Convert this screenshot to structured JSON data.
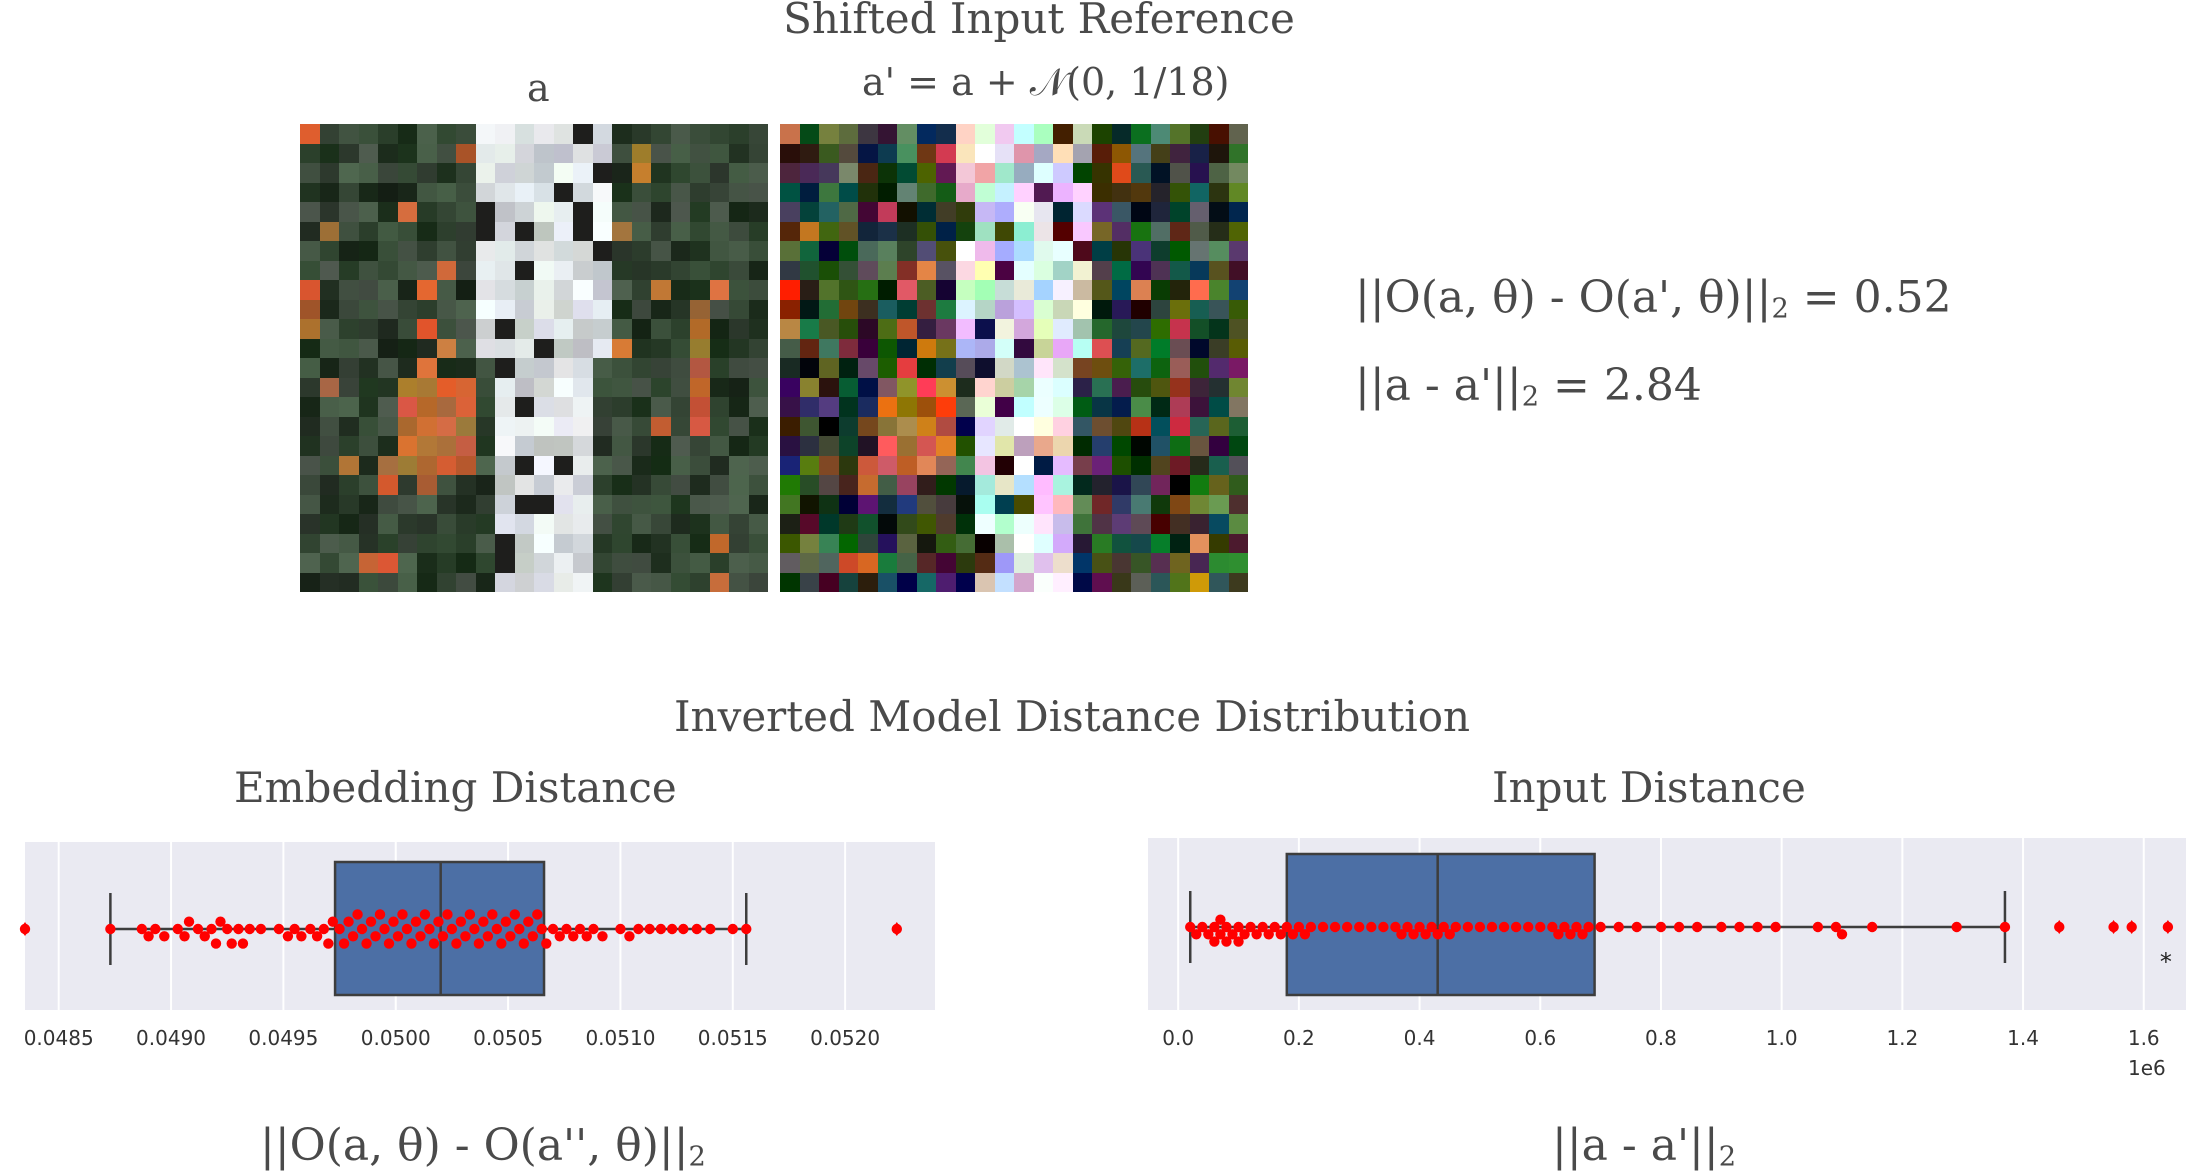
{
  "figure": {
    "top_title": "Shifted Input Reference",
    "image_a_label": "a",
    "image_ap_label": "a' = a + 𝒩(0, 1/18)",
    "metric_embedding_prefix": "||O(a, θ) - O(a', θ)||",
    "metric_embedding_sub": "2",
    "metric_embedding_value": " = 0.52",
    "metric_input_prefix": "||a - a'||",
    "metric_input_sub": "2",
    "metric_input_value": " = 2.84",
    "bottom_title": "Inverted Model Distance Distribution"
  },
  "chart_data": [
    {
      "type": "box",
      "title": "Embedding Distance",
      "xlabel_prefix": "||O(a, θ) - O(a'', θ)||",
      "xlabel_sub": "2",
      "xlim": [
        0.04835,
        0.0524
      ],
      "xticks": [
        "0.0485",
        "0.0490",
        "0.0495",
        "0.0500",
        "0.0505",
        "0.0510",
        "0.0515",
        "0.0520"
      ],
      "tick_values": [
        0.0485,
        0.049,
        0.0495,
        0.05,
        0.0505,
        0.051,
        0.0515,
        0.052
      ],
      "box": {
        "whisker_low": 0.04873,
        "q1": 0.04973,
        "median": 0.0502,
        "q3": 0.05066,
        "whisker_high": 0.05156
      },
      "outliers": [
        0.04835,
        0.05223
      ],
      "points": [
        0.04873,
        0.04887,
        0.0489,
        0.04893,
        0.04897,
        0.04903,
        0.04906,
        0.04908,
        0.04912,
        0.04915,
        0.04918,
        0.0492,
        0.04922,
        0.04925,
        0.04927,
        0.0493,
        0.04932,
        0.04935,
        0.0494,
        0.04948,
        0.04952,
        0.04955,
        0.04958,
        0.04962,
        0.04965,
        0.04968,
        0.0497,
        0.04972,
        0.04975,
        0.04977,
        0.04979,
        0.04981,
        0.04983,
        0.04985,
        0.04987,
        0.04989,
        0.04991,
        0.04993,
        0.04995,
        0.04997,
        0.04999,
        0.05001,
        0.05003,
        0.05005,
        0.05007,
        0.05009,
        0.05011,
        0.05013,
        0.05015,
        0.05017,
        0.05019,
        0.05021,
        0.05023,
        0.05025,
        0.05027,
        0.05029,
        0.05031,
        0.05033,
        0.05035,
        0.05037,
        0.05039,
        0.05041,
        0.05043,
        0.05045,
        0.05047,
        0.05049,
        0.05051,
        0.05053,
        0.05055,
        0.05057,
        0.05059,
        0.05061,
        0.05063,
        0.05065,
        0.05067,
        0.0507,
        0.05073,
        0.05076,
        0.05079,
        0.05082,
        0.05085,
        0.05088,
        0.05092,
        0.051,
        0.05104,
        0.05108,
        0.05113,
        0.05118,
        0.05123,
        0.05128,
        0.05134,
        0.0514,
        0.0515,
        0.05156,
        0.04835,
        0.05223
      ]
    },
    {
      "type": "box",
      "title": "Input Distance",
      "xlabel_prefix": "||a - a'||",
      "xlabel_sub": "2",
      "scale_label": "1e6",
      "xlim": [
        -0.05,
        1.67
      ],
      "xticks": [
        "0.0",
        "0.2",
        "0.4",
        "0.6",
        "0.8",
        "1.0",
        "1.2",
        "1.4",
        "1.6"
      ],
      "tick_values": [
        0.0,
        0.2,
        0.4,
        0.6,
        0.8,
        1.0,
        1.2,
        1.4,
        1.6
      ],
      "box": {
        "whisker_low": 0.02,
        "q1": 0.18,
        "median": 0.43,
        "q3": 0.69,
        "whisker_high": 1.37
      },
      "outliers": [
        1.46,
        1.55,
        1.58,
        1.64
      ],
      "annotation": "*",
      "points": [
        0.02,
        0.03,
        0.04,
        0.05,
        0.06,
        0.06,
        0.07,
        0.07,
        0.08,
        0.08,
        0.09,
        0.1,
        0.1,
        0.11,
        0.12,
        0.13,
        0.14,
        0.15,
        0.16,
        0.17,
        0.18,
        0.19,
        0.2,
        0.21,
        0.22,
        0.24,
        0.26,
        0.28,
        0.3,
        0.32,
        0.34,
        0.36,
        0.37,
        0.38,
        0.39,
        0.4,
        0.41,
        0.42,
        0.43,
        0.44,
        0.45,
        0.46,
        0.48,
        0.5,
        0.52,
        0.54,
        0.56,
        0.58,
        0.6,
        0.62,
        0.63,
        0.64,
        0.65,
        0.66,
        0.67,
        0.68,
        0.7,
        0.73,
        0.76,
        0.8,
        0.83,
        0.86,
        0.9,
        0.93,
        0.96,
        0.99,
        1.06,
        1.09,
        1.1,
        1.15,
        1.29,
        1.37,
        1.46,
        1.55,
        1.58,
        1.64
      ]
    }
  ],
  "colors": {
    "box_fill": "#4c6fa5",
    "box_edge": "#3d3d3d",
    "plot_bg": "#eaeaf2",
    "grid": "#ffffff",
    "points": "#ff0000",
    "text": "#4a4a4a"
  },
  "images": {
    "a_description_icon": "tree-trunk-pixel-image",
    "ap_description_icon": "noisy-tree-trunk-pixel-image"
  }
}
